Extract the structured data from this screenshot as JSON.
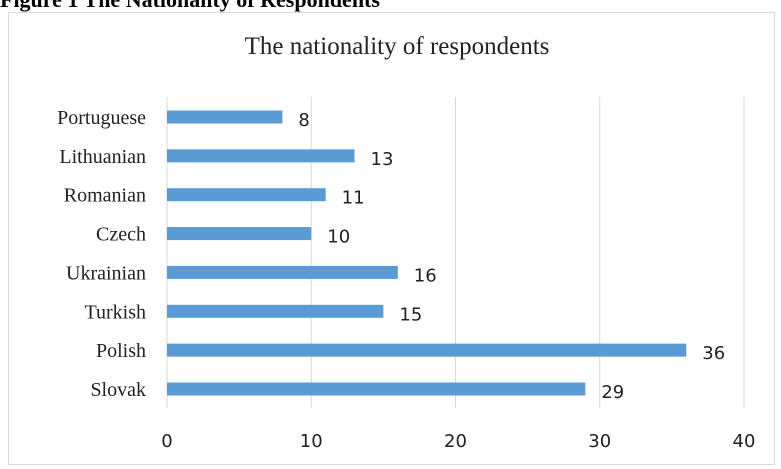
{
  "figure_caption": "Figure 1 The Nationality of Respondents",
  "chart_data": {
    "type": "bar",
    "orientation": "horizontal",
    "title": "The nationality of respondents",
    "categories": [
      "Portuguese",
      "Lithuanian",
      "Romanian",
      "Czech",
      "Ukrainian",
      "Turkish",
      "Polish",
      "Slovak"
    ],
    "values": [
      8,
      13,
      11,
      10,
      16,
      15,
      36,
      29
    ],
    "xlim": [
      0,
      40
    ],
    "x_ticks": [
      "0",
      "10",
      "20",
      "30",
      "40"
    ],
    "grid": "vertical",
    "data_labels": true,
    "bar_color": "#5b9bd5",
    "gridline_color": "#d9d9d9"
  }
}
